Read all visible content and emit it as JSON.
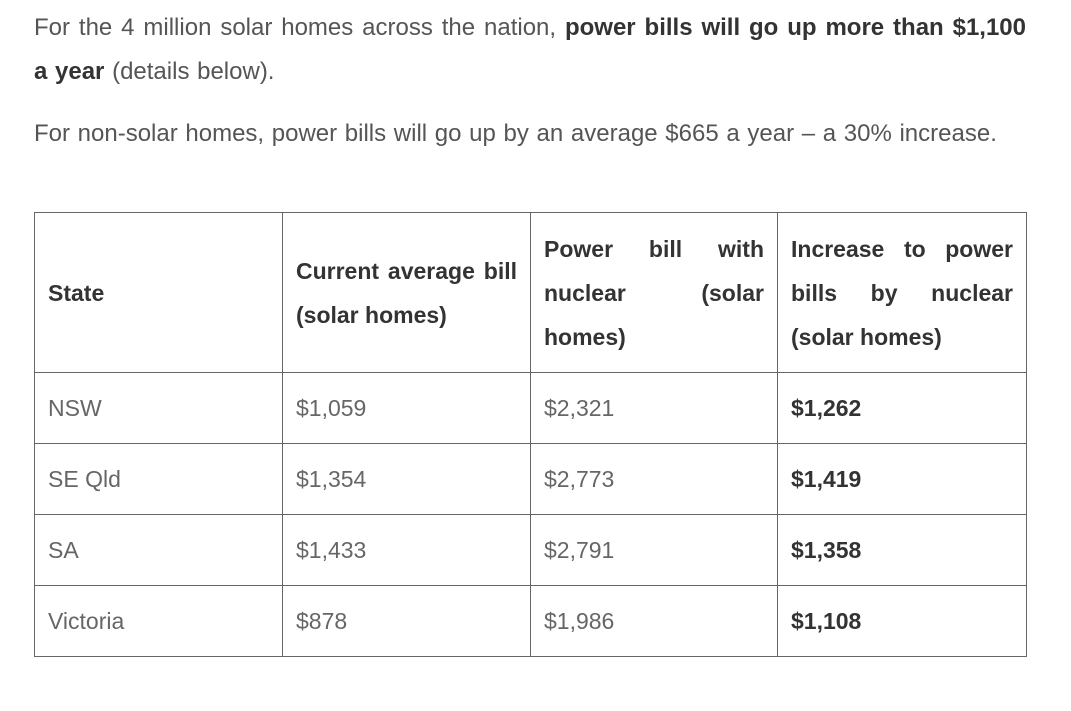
{
  "intro": {
    "p1_prefix": "For the 4 million solar homes across the nation, ",
    "p1_bold": "power bills will go up more than $1,100 a year",
    "p1_suffix": " (details below).",
    "p2": "For non-solar homes, power bills will go up by an average $665 a year – a 30% increase."
  },
  "table": {
    "headers": [
      "State",
      "Current average bill (solar homes)",
      "Power bill with nuclear (solar homes)",
      "Increase to power bills by nuclear (solar homes)"
    ],
    "rows": [
      {
        "state": "NSW",
        "current": "$1,059",
        "nuclear": "$2,321",
        "increase": "$1,262"
      },
      {
        "state": "SE Qld",
        "current": "$1,354",
        "nuclear": "$2,773",
        "increase": "$1,419"
      },
      {
        "state": "SA",
        "current": "$1,433",
        "nuclear": "$2,791",
        "increase": "$1,358"
      },
      {
        "state": "Victoria",
        "current": "$878",
        "nuclear": "$1,986",
        "increase": "$1,108"
      }
    ]
  }
}
